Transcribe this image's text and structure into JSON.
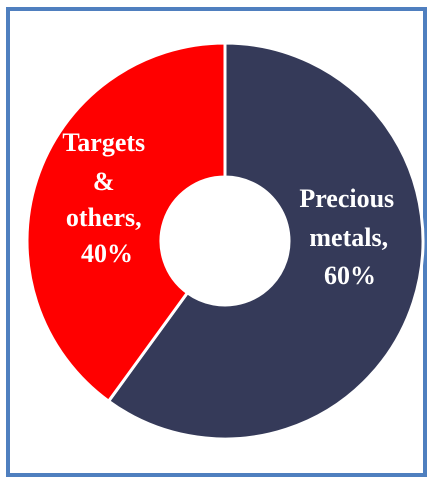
{
  "chart_data": {
    "type": "pie",
    "donut": true,
    "title": "",
    "slices": [
      {
        "name": "Precious metals",
        "value": 60,
        "label_lines": [
          "Precious",
          "metals,",
          "60%"
        ],
        "color": "#353a59"
      },
      {
        "name": "Targets & others",
        "value": 40,
        "label_lines": [
          "Targets",
          "&",
          "others,",
          "40%"
        ],
        "color": "#ff0000"
      }
    ],
    "start_angle": "top (12 o'clock)",
    "direction": "clockwise",
    "legend": "none"
  },
  "colors": {
    "frame_border": "#4f7fbf",
    "slice_separator": "#ffffff",
    "label_text": "#ffffff"
  }
}
